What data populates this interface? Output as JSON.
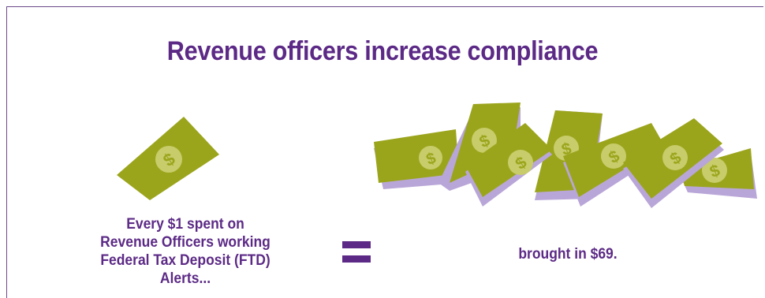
{
  "title": "Revenue officers increase compliance",
  "left_caption": {
    "lines": [
      "Every $1 spent on",
      "Revenue Officers working",
      "Federal Tax Deposit (FTD) Alerts..."
    ]
  },
  "equals_sign": "=",
  "right_caption": "brought in $69.",
  "icons": {
    "single_bill": "dollar-bill-icon",
    "bill_stacks": "money-stack-icon",
    "currency_symbol": "$"
  },
  "colors": {
    "accent": "#5c2a86",
    "bill_green": "#9ba51c",
    "coin": "#c8cc6a",
    "stack_edge": "#b9a6d8"
  }
}
